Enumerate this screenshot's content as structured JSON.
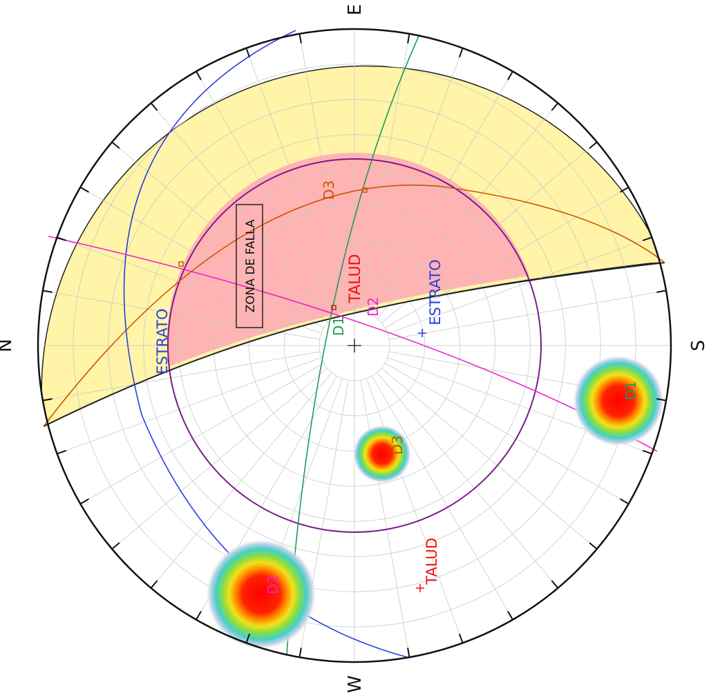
{
  "compass": {
    "north": "N",
    "east": "E",
    "south": "S",
    "west": "W"
  },
  "labels": {
    "fault_zone": "ZONA DE FALLA",
    "slope": "TALUD",
    "bedding": "ESTRATO",
    "d1": "D1",
    "d2": "D2",
    "d3": "D3"
  },
  "colors": {
    "bedding": "#2a3fe0",
    "slope": "#ee1111",
    "d1": "#1f9a5a",
    "d2": "#ee22cc",
    "d3": "#cc5500",
    "friction_circle": "#7a1a8a",
    "wedge_zone_fill": "#fff4a8",
    "failure_zone_fill": "#ffb3b3",
    "net": "#c9c9c9"
  },
  "icons": {
    "center": "crosshair-icon",
    "pole": "plus-icon"
  }
}
